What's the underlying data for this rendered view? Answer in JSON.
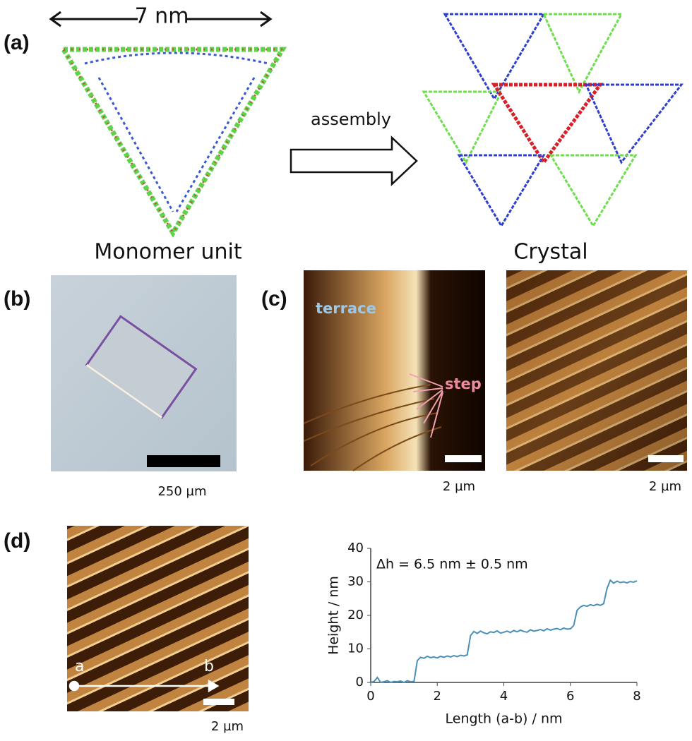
{
  "panels": {
    "a": {
      "label": "(a)",
      "dimension": "7 nm",
      "left_caption": "Monomer unit",
      "arrow_label": "assembly",
      "right_caption": "Crystal"
    },
    "b": {
      "label": "(b)",
      "scale_bar": "250 µm"
    },
    "c": {
      "label": "(c)",
      "terrace": "terrace",
      "step": "step",
      "scale_bars": [
        "2 µm",
        "2 µm"
      ]
    },
    "d": {
      "label": "(d)",
      "point_a": "a",
      "point_b": "b",
      "scale_bar": "2 µm"
    }
  },
  "chart_data": {
    "type": "line",
    "annotation": "Δh = 6.5 nm ± 0.5 nm",
    "xlabel": "Length (a-b) / nm",
    "ylabel": "Height / nm",
    "color": "#4a8fb8",
    "x": [
      0,
      0.1,
      0.2,
      0.3,
      0.4,
      0.5,
      0.6,
      0.7,
      0.8,
      0.9,
      1.0,
      1.1,
      1.2,
      1.3,
      1.4,
      1.5,
      1.6,
      1.7,
      1.8,
      1.9,
      2.0,
      2.1,
      2.2,
      2.3,
      2.4,
      2.5,
      2.6,
      2.7,
      2.8,
      2.9,
      3.0,
      3.1,
      3.2,
      3.3,
      3.4,
      3.5,
      3.6,
      3.7,
      3.8,
      3.9,
      4.0,
      4.1,
      4.2,
      4.3,
      4.4,
      4.5,
      4.6,
      4.7,
      4.8,
      4.9,
      5.0,
      5.1,
      5.2,
      5.3,
      5.4,
      5.5,
      5.6,
      5.7,
      5.8,
      5.9,
      6.0,
      6.1,
      6.2,
      6.3,
      6.4,
      6.5,
      6.6,
      6.7,
      6.8,
      6.9,
      7.0,
      7.1,
      7.2,
      7.3,
      7.4,
      7.5,
      7.6,
      7.7,
      7.8,
      7.9,
      8.0
    ],
    "values": [
      0,
      0.3,
      1.5,
      0,
      0.2,
      0.5,
      0,
      0.3,
      0.2,
      0.4,
      0,
      0.5,
      0.2,
      0.3,
      6.5,
      7.5,
      7.2,
      7.8,
      7.4,
      7.6,
      7.3,
      7.8,
      7.5,
      7.9,
      7.6,
      8.0,
      7.7,
      8.1,
      7.9,
      8.2,
      14,
      15.2,
      14.6,
      15.3,
      14.8,
      14.5,
      15.1,
      14.9,
      15.4,
      14.7,
      15.0,
      15.3,
      14.9,
      15.5,
      15.1,
      15.6,
      15.2,
      15.0,
      15.7,
      15.3,
      15.5,
      15.8,
      15.4,
      16.0,
      15.6,
      15.9,
      16.1,
      15.7,
      16.2,
      15.9,
      16.0,
      17,
      21.5,
      22.5,
      23.0,
      22.7,
      23.2,
      22.9,
      23.3,
      23.0,
      23.5,
      28,
      30.5,
      29.6,
      30.2,
      29.8,
      30.0,
      29.7,
      30.1,
      29.9,
      30.3
    ],
    "xlim": [
      0,
      8
    ],
    "xticks": [
      0,
      2,
      4,
      6,
      8
    ],
    "ylim": [
      0,
      40
    ],
    "yticks": [
      0,
      10,
      20,
      30,
      40
    ]
  }
}
